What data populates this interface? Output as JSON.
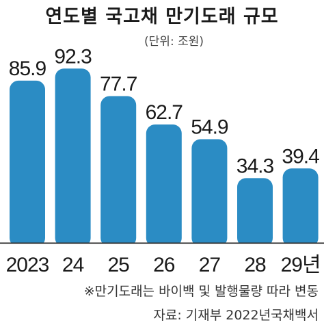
{
  "chart_data": {
    "type": "bar",
    "title": "연도별 국고채 만기도래 규모",
    "unit": "(단위: 조원)",
    "categories": [
      "2023",
      "24",
      "25",
      "26",
      "27",
      "28",
      "29년"
    ],
    "values": [
      85.9,
      92.3,
      77.7,
      62.7,
      54.9,
      34.3,
      39.4
    ],
    "value_labels": [
      "85.9",
      "92.3",
      "77.7",
      "62.7",
      "54.9",
      "34.3",
      "39.4"
    ],
    "ylim": [
      0,
      100
    ],
    "grid": false,
    "legend": "none",
    "bar_color": "#2b8cc4"
  },
  "footnote": "※만기도래는 바이백 및 발행물량 따라 변동",
  "source": "자료: 기재부 2022년국채백서"
}
